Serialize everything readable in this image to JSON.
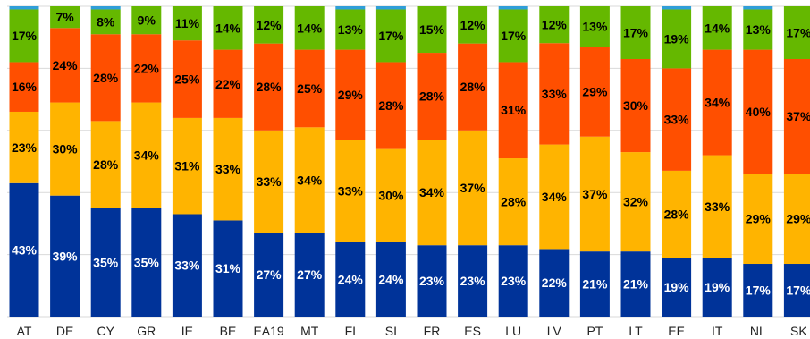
{
  "chart_data": {
    "type": "bar",
    "stacked": true,
    "percent": true,
    "title": "",
    "xlabel": "",
    "ylabel": "",
    "ylim": [
      0,
      100
    ],
    "grid": true,
    "legend": "none",
    "categories": [
      "AT",
      "DE",
      "CY",
      "GR",
      "IE",
      "BE",
      "EA19",
      "MT",
      "FI",
      "SI",
      "FR",
      "ES",
      "LU",
      "LV",
      "PT",
      "LT",
      "EE",
      "IT",
      "NL",
      "SK"
    ],
    "series": [
      {
        "color": "#003399",
        "label_color": "#ffffff",
        "values": [
          43,
          39,
          35,
          35,
          33,
          31,
          27,
          27,
          24,
          24,
          23,
          23,
          23,
          22,
          21,
          21,
          19,
          19,
          17,
          17
        ],
        "labels": [
          "43%",
          "39%",
          "35%",
          "35%",
          "33%",
          "31%",
          "27%",
          "27%",
          "24%",
          "24%",
          "23%",
          "23%",
          "23%",
          "22%",
          "21%",
          "21%",
          "19%",
          "19%",
          "17%",
          "17%"
        ]
      },
      {
        "color": "#ffb400",
        "label_color": "#000000",
        "values": [
          23,
          30,
          28,
          34,
          31,
          33,
          33,
          34,
          33,
          30,
          34,
          37,
          28,
          34,
          37,
          32,
          28,
          33,
          29,
          29
        ],
        "labels": [
          "23%",
          "30%",
          "28%",
          "34%",
          "31%",
          "33%",
          "33%",
          "34%",
          "33%",
          "30%",
          "34%",
          "37%",
          "28%",
          "34%",
          "37%",
          "32%",
          "28%",
          "33%",
          "29%",
          "29%"
        ]
      },
      {
        "color": "#ff4f00",
        "label_color": "#000000",
        "values": [
          16,
          24,
          28,
          22,
          25,
          22,
          28,
          25,
          29,
          28,
          28,
          28,
          31,
          33,
          29,
          30,
          33,
          34,
          40,
          37
        ],
        "labels": [
          "16%",
          "24%",
          "28%",
          "22%",
          "25%",
          "22%",
          "28%",
          "25%",
          "29%",
          "28%",
          "28%",
          "28%",
          "31%",
          "33%",
          "29%",
          "30%",
          "33%",
          "34%",
          "40%",
          "37%"
        ]
      },
      {
        "color": "#65b800",
        "label_color": "#000000",
        "values": [
          17,
          7,
          8,
          9,
          11,
          14,
          12,
          14,
          13,
          17,
          15,
          12,
          17,
          12,
          13,
          17,
          19,
          14,
          13,
          17
        ],
        "labels": [
          "17%",
          "7%",
          "8%",
          "9%",
          "11%",
          "14%",
          "12%",
          "14%",
          "13%",
          "17%",
          "15%",
          "12%",
          "17%",
          "12%",
          "13%",
          "17%",
          "19%",
          "14%",
          "13%",
          "17%"
        ]
      },
      {
        "color": "#2f9ed8",
        "label_color": "#000000",
        "values": [
          1,
          0,
          1,
          0,
          0,
          0,
          0,
          0,
          1,
          1,
          0,
          0,
          1,
          0,
          0,
          0,
          1,
          0,
          1,
          0
        ],
        "labels": []
      }
    ],
    "gridline_color": "#d9d9d9"
  }
}
